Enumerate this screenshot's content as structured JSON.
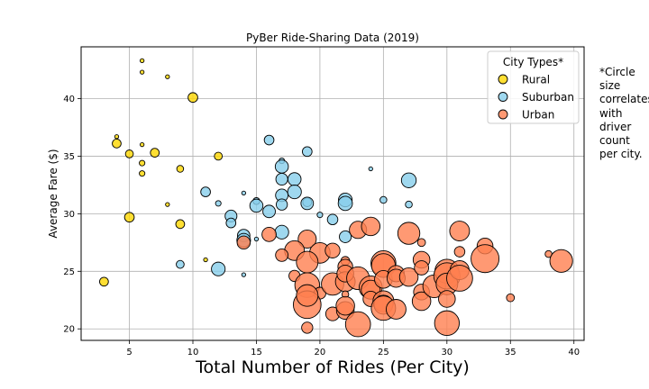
{
  "chart_data": {
    "type": "scatter",
    "title": "PyBer Ride-Sharing Data (2019)",
    "xlabel": "Total Number of Rides (Per City)",
    "ylabel": "Average Fare ($)",
    "xlim": [
      1.2,
      40.8
    ],
    "ylim": [
      19.0,
      44.5
    ],
    "xticks": [
      5,
      10,
      15,
      20,
      25,
      30,
      35,
      40
    ],
    "yticks": [
      20,
      25,
      30,
      35,
      40
    ],
    "grid": true,
    "legend_title": "City Types*",
    "legend_position": "top-right",
    "note": "*Circle\nsize\ncorrelates\nwith\ndriver\ncount\nper city.",
    "series": [
      {
        "name": "Rural",
        "color": "#FFD700",
        "points": [
          {
            "x": 6,
            "y": 43.3,
            "s": 1
          },
          {
            "x": 6,
            "y": 42.3,
            "s": 1
          },
          {
            "x": 8,
            "y": 41.9,
            "s": 1
          },
          {
            "x": 10,
            "y": 40.1,
            "s": 6
          },
          {
            "x": 4,
            "y": 36.7,
            "s": 1
          },
          {
            "x": 4,
            "y": 36.1,
            "s": 5
          },
          {
            "x": 6,
            "y": 36.0,
            "s": 1
          },
          {
            "x": 5,
            "y": 35.2,
            "s": 4
          },
          {
            "x": 7,
            "y": 35.3,
            "s": 5
          },
          {
            "x": 12,
            "y": 35.0,
            "s": 4
          },
          {
            "x": 6,
            "y": 34.4,
            "s": 2
          },
          {
            "x": 9,
            "y": 33.9,
            "s": 3
          },
          {
            "x": 6,
            "y": 33.5,
            "s": 2
          },
          {
            "x": 8,
            "y": 30.8,
            "s": 1
          },
          {
            "x": 5,
            "y": 29.7,
            "s": 6
          },
          {
            "x": 9,
            "y": 29.1,
            "s": 5
          },
          {
            "x": 11,
            "y": 26.0,
            "s": 1
          },
          {
            "x": 3,
            "y": 24.1,
            "s": 5
          }
        ]
      },
      {
        "name": "Suburban",
        "color": "#87CEEB",
        "points": [
          {
            "x": 16,
            "y": 36.4,
            "s": 6
          },
          {
            "x": 19,
            "y": 35.4,
            "s": 6
          },
          {
            "x": 17,
            "y": 34.6,
            "s": 2
          },
          {
            "x": 17,
            "y": 34.1,
            "s": 11
          },
          {
            "x": 24,
            "y": 33.9,
            "s": 1
          },
          {
            "x": 17,
            "y": 33.0,
            "s": 9
          },
          {
            "x": 18,
            "y": 33.0,
            "s": 11
          },
          {
            "x": 27,
            "y": 32.9,
            "s": 14
          },
          {
            "x": 11,
            "y": 31.9,
            "s": 6
          },
          {
            "x": 18,
            "y": 31.9,
            "s": 12
          },
          {
            "x": 14,
            "y": 31.8,
            "s": 1
          },
          {
            "x": 17,
            "y": 31.6,
            "s": 10
          },
          {
            "x": 22,
            "y": 31.2,
            "s": 12
          },
          {
            "x": 25,
            "y": 31.2,
            "s": 3
          },
          {
            "x": 15,
            "y": 31.1,
            "s": 3
          },
          {
            "x": 19,
            "y": 31.0,
            "s": 5
          },
          {
            "x": 19,
            "y": 30.9,
            "s": 10
          },
          {
            "x": 22,
            "y": 30.9,
            "s": 13
          },
          {
            "x": 12,
            "y": 30.9,
            "s": 2
          },
          {
            "x": 15,
            "y": 30.7,
            "s": 11
          },
          {
            "x": 17,
            "y": 30.8,
            "s": 8
          },
          {
            "x": 27,
            "y": 30.8,
            "s": 3
          },
          {
            "x": 16,
            "y": 30.2,
            "s": 10
          },
          {
            "x": 20,
            "y": 29.9,
            "s": 2
          },
          {
            "x": 13,
            "y": 29.8,
            "s": 9
          },
          {
            "x": 21,
            "y": 29.5,
            "s": 7
          },
          {
            "x": 13,
            "y": 29.2,
            "s": 6
          },
          {
            "x": 17,
            "y": 28.4,
            "s": 12
          },
          {
            "x": 14,
            "y": 28.1,
            "s": 10
          },
          {
            "x": 22,
            "y": 28.0,
            "s": 9
          },
          {
            "x": 15,
            "y": 27.8,
            "s": 1
          },
          {
            "x": 14,
            "y": 27.7,
            "s": 12
          },
          {
            "x": 9,
            "y": 25.6,
            "s": 4
          },
          {
            "x": 12,
            "y": 25.2,
            "s": 12
          },
          {
            "x": 14,
            "y": 24.7,
            "s": 1
          }
        ]
      },
      {
        "name": "Urban",
        "color": "#FF7F50",
        "points": [
          {
            "x": 16,
            "y": 28.2,
            "s": 13
          },
          {
            "x": 19,
            "y": 27.8,
            "s": 21
          },
          {
            "x": 18,
            "y": 26.8,
            "s": 25
          },
          {
            "x": 17,
            "y": 26.4,
            "s": 10
          },
          {
            "x": 20,
            "y": 26.6,
            "s": 27
          },
          {
            "x": 21,
            "y": 26.8,
            "s": 14
          },
          {
            "x": 14,
            "y": 27.5,
            "s": 11
          },
          {
            "x": 19,
            "y": 25.8,
            "s": 30
          },
          {
            "x": 22,
            "y": 25.9,
            "s": 5
          },
          {
            "x": 22,
            "y": 25.4,
            "s": 14
          },
          {
            "x": 18,
            "y": 24.6,
            "s": 8
          },
          {
            "x": 19,
            "y": 23.8,
            "s": 39
          },
          {
            "x": 20,
            "y": 23.1,
            "s": 9
          },
          {
            "x": 21,
            "y": 23.9,
            "s": 32
          },
          {
            "x": 22,
            "y": 24.1,
            "s": 25
          },
          {
            "x": 22,
            "y": 24.8,
            "s": 18
          },
          {
            "x": 23,
            "y": 24.4,
            "s": 33
          },
          {
            "x": 23,
            "y": 28.6,
            "s": 19
          },
          {
            "x": 24,
            "y": 28.9,
            "s": 22
          },
          {
            "x": 22,
            "y": 23.0,
            "s": 3
          },
          {
            "x": 24,
            "y": 23.6,
            "s": 34
          },
          {
            "x": 24,
            "y": 23.4,
            "s": 23
          },
          {
            "x": 24,
            "y": 22.6,
            "s": 15
          },
          {
            "x": 25,
            "y": 25.7,
            "s": 40
          },
          {
            "x": 25,
            "y": 25.5,
            "s": 36
          },
          {
            "x": 25,
            "y": 24.3,
            "s": 20
          },
          {
            "x": 26,
            "y": 24.8,
            "s": 17
          },
          {
            "x": 25,
            "y": 22.4,
            "s": 28
          },
          {
            "x": 25,
            "y": 22.1,
            "s": 23
          },
          {
            "x": 25,
            "y": 21.8,
            "s": 38
          },
          {
            "x": 26,
            "y": 21.7,
            "s": 25
          },
          {
            "x": 26,
            "y": 24.4,
            "s": 21
          },
          {
            "x": 27,
            "y": 24.5,
            "s": 22
          },
          {
            "x": 27,
            "y": 28.3,
            "s": 31
          },
          {
            "x": 28,
            "y": 27.5,
            "s": 4
          },
          {
            "x": 28,
            "y": 26.0,
            "s": 18
          },
          {
            "x": 28,
            "y": 25.3,
            "s": 13
          },
          {
            "x": 28,
            "y": 23.2,
            "s": 16
          },
          {
            "x": 28,
            "y": 22.4,
            "s": 22
          },
          {
            "x": 29,
            "y": 23.7,
            "s": 33
          },
          {
            "x": 30,
            "y": 25.0,
            "s": 37
          },
          {
            "x": 30,
            "y": 24.6,
            "s": 44
          },
          {
            "x": 30,
            "y": 23.9,
            "s": 30
          },
          {
            "x": 30,
            "y": 22.6,
            "s": 18
          },
          {
            "x": 30,
            "y": 20.5,
            "s": 39
          },
          {
            "x": 31,
            "y": 28.5,
            "s": 25
          },
          {
            "x": 31,
            "y": 26.7,
            "s": 7
          },
          {
            "x": 31,
            "y": 25.1,
            "s": 23
          },
          {
            "x": 31,
            "y": 24.4,
            "s": 43
          },
          {
            "x": 33,
            "y": 27.2,
            "s": 16
          },
          {
            "x": 33,
            "y": 26.1,
            "s": 50
          },
          {
            "x": 35,
            "y": 22.7,
            "s": 4
          },
          {
            "x": 38,
            "y": 26.5,
            "s": 3
          },
          {
            "x": 39,
            "y": 25.9,
            "s": 33
          },
          {
            "x": 21,
            "y": 21.3,
            "s": 12
          },
          {
            "x": 19,
            "y": 22.1,
            "s": 49
          },
          {
            "x": 19,
            "y": 20.1,
            "s": 8
          },
          {
            "x": 22,
            "y": 21.6,
            "s": 20
          },
          {
            "x": 23,
            "y": 20.4,
            "s": 40
          },
          {
            "x": 22,
            "y": 22.0,
            "s": 22
          },
          {
            "x": 19,
            "y": 22.9,
            "s": 30
          }
        ]
      }
    ]
  }
}
